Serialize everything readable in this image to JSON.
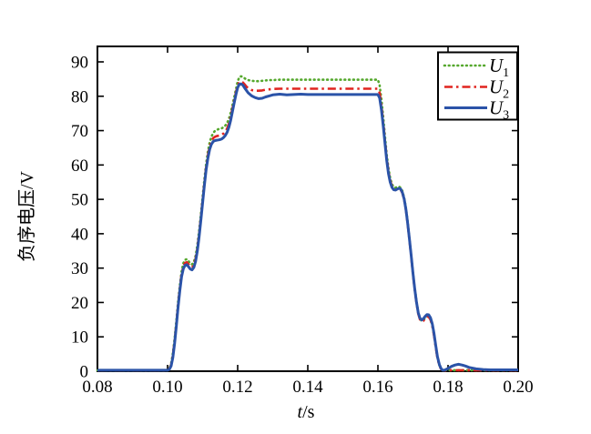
{
  "figure": {
    "background": "#ffffff",
    "axis_color": "#000000"
  },
  "chart_data": {
    "type": "line",
    "title": "",
    "xlabel": "t/s",
    "ylabel": "负序电压/V",
    "xlim": [
      0.08,
      0.2
    ],
    "ylim": [
      0,
      94.5
    ],
    "x_ticks": [
      0.08,
      0.1,
      0.12,
      0.14,
      0.16,
      0.18,
      0.2
    ],
    "x_tick_labels": [
      "0.08",
      "0.10",
      "0.12",
      "0.14",
      "0.16",
      "0.18",
      "0.20"
    ],
    "y_ticks": [
      0,
      10,
      20,
      30,
      40,
      50,
      60,
      70,
      80,
      90
    ],
    "y_tick_labels": [
      "0",
      "10",
      "20",
      "30",
      "40",
      "50",
      "60",
      "70",
      "80",
      "90"
    ],
    "grid": false,
    "legend_position": "top-right",
    "x": [
      0.08,
      0.085,
      0.09,
      0.095,
      0.1,
      0.1005,
      0.101,
      0.1015,
      0.102,
      0.1025,
      0.103,
      0.1035,
      0.104,
      0.1045,
      0.105,
      0.1055,
      0.106,
      0.1065,
      0.107,
      0.1075,
      0.108,
      0.1085,
      0.109,
      0.1095,
      0.11,
      0.1105,
      0.111,
      0.1115,
      0.112,
      0.1125,
      0.113,
      0.1135,
      0.114,
      0.1145,
      0.115,
      0.1155,
      0.116,
      0.1165,
      0.117,
      0.1175,
      0.118,
      0.1185,
      0.119,
      0.1195,
      0.12,
      0.1205,
      0.121,
      0.1215,
      0.122,
      0.1225,
      0.123,
      0.124,
      0.125,
      0.126,
      0.127,
      0.128,
      0.129,
      0.13,
      0.132,
      0.134,
      0.136,
      0.138,
      0.14,
      0.144,
      0.148,
      0.152,
      0.156,
      0.158,
      0.16,
      0.1605,
      0.161,
      0.1615,
      0.162,
      0.1625,
      0.163,
      0.1635,
      0.164,
      0.1645,
      0.165,
      0.1655,
      0.166,
      0.1665,
      0.167,
      0.1675,
      0.168,
      0.1685,
      0.169,
      0.1695,
      0.17,
      0.1705,
      0.171,
      0.1715,
      0.172,
      0.1725,
      0.173,
      0.1735,
      0.174,
      0.1745,
      0.175,
      0.1755,
      0.176,
      0.1765,
      0.177,
      0.1775,
      0.178,
      0.1785,
      0.179,
      0.18,
      0.181,
      0.182,
      0.183,
      0.184,
      0.185,
      0.186,
      0.188,
      0.19,
      0.192,
      0.194,
      0.196,
      0.198,
      0.2
    ],
    "series": [
      {
        "name": "U1",
        "label": "U",
        "sub": "1",
        "color": "#55a82d",
        "style": "dotted",
        "width": 2.6,
        "values": [
          0.3,
          0.3,
          0.3,
          0.3,
          0.3,
          0.7,
          2.2,
          5.2,
          9.4,
          14.5,
          20,
          25,
          29,
          31.4,
          32.4,
          32.6,
          32,
          31.3,
          31.1,
          31.8,
          33.6,
          36.6,
          40.7,
          45.7,
          50.7,
          55.7,
          60.2,
          63.9,
          66.5,
          68.2,
          69.3,
          69.9,
          70.2,
          70.4,
          70.5,
          70.7,
          71,
          71.5,
          72.2,
          73.4,
          75.2,
          77.3,
          79.6,
          82,
          84.3,
          85.6,
          85.8,
          85.6,
          85.2,
          84.9,
          84.7,
          84.5,
          84.4,
          84.4,
          84.5,
          84.6,
          84.7,
          84.7,
          84.8,
          84.8,
          84.8,
          84.8,
          84.8,
          84.8,
          84.8,
          84.8,
          84.8,
          84.8,
          84.8,
          83.2,
          79,
          74,
          68.5,
          63.2,
          59,
          56.2,
          54.4,
          53.6,
          53.4,
          53.6,
          53.7,
          53.4,
          52.4,
          50.4,
          47.4,
          43.4,
          38.8,
          33.8,
          28.8,
          24.3,
          20.3,
          17.1,
          15.3,
          14.6,
          14.9,
          15.6,
          16.1,
          16,
          15.2,
          13.4,
          10.7,
          7.2,
          4,
          1.8,
          0.7,
          0.3,
          0.3,
          0.3,
          0.3,
          0.3,
          0.3,
          0.3,
          0.3,
          0.3,
          0.3,
          0.3,
          0.3,
          0.3,
          0.3,
          0.3,
          0.3
        ]
      },
      {
        "name": "U2",
        "label": "U",
        "sub": "2",
        "color": "#e0241f",
        "style": "dash-dot",
        "width": 2.6,
        "values": [
          0.3,
          0.3,
          0.3,
          0.3,
          0.3,
          0.6,
          1.8,
          4.5,
          8.6,
          13.6,
          19.2,
          24.2,
          28.2,
          30.5,
          31.5,
          31.7,
          31.1,
          30.4,
          30.2,
          30.9,
          32.7,
          35.7,
          39.7,
          44.7,
          49.7,
          54.7,
          59.2,
          62.8,
          65.3,
          66.9,
          67.8,
          68.2,
          68.4,
          68.5,
          68.6,
          68.8,
          69.2,
          69.8,
          70.6,
          72,
          74,
          76.3,
          78.7,
          81.1,
          83.1,
          84.2,
          84.3,
          84,
          83.4,
          82.8,
          82.3,
          81.8,
          81.6,
          81.6,
          81.7,
          81.9,
          82,
          82.1,
          82.2,
          82.2,
          82.2,
          82.2,
          82.2,
          82.2,
          82.2,
          82.2,
          82.2,
          82.2,
          82.2,
          81,
          77.2,
          72.5,
          67.3,
          62.2,
          58.2,
          55.5,
          53.8,
          53,
          52.8,
          53,
          53.1,
          52.8,
          51.8,
          49.8,
          46.8,
          42.8,
          38.2,
          33.2,
          28.2,
          23.8,
          19.8,
          16.7,
          15,
          14.4,
          14.7,
          15.4,
          15.9,
          15.8,
          15,
          13.2,
          10.4,
          7,
          3.8,
          1.7,
          0.6,
          0.3,
          0.2,
          0.2,
          0.3,
          0.3,
          0.3,
          0.3,
          0.3,
          0.3,
          0.3,
          0.3,
          0.3,
          0.3,
          0.3,
          0.3,
          0.3
        ]
      },
      {
        "name": "U3",
        "label": "U",
        "sub": "3",
        "color": "#2b53a8",
        "style": "solid",
        "width": 3,
        "values": [
          0.3,
          0.3,
          0.3,
          0.3,
          0.3,
          0.5,
          1.5,
          4,
          8,
          13,
          18.5,
          23.5,
          27.5,
          29.8,
          30.8,
          31,
          30.4,
          29.7,
          29.5,
          30.2,
          32,
          35,
          39,
          44,
          49,
          54,
          58.5,
          62,
          64.5,
          66,
          66.8,
          67.1,
          67.2,
          67.3,
          67.4,
          67.6,
          68,
          68.6,
          69.5,
          71,
          73,
          75.5,
          78,
          80.5,
          82.5,
          83.5,
          83.6,
          83.2,
          82.4,
          81.7,
          81,
          80.1,
          79.6,
          79.3,
          79.4,
          79.8,
          80.1,
          80.4,
          80.6,
          80.4,
          80.5,
          80.6,
          80.5,
          80.5,
          80.5,
          80.5,
          80.5,
          80.5,
          80.5,
          79.5,
          76,
          71.5,
          66.5,
          61.5,
          57.5,
          55,
          53.5,
          52.8,
          52.7,
          53,
          53.2,
          53,
          52,
          50,
          47,
          43,
          38.5,
          33.5,
          28.5,
          24,
          20,
          17,
          15.4,
          14.9,
          15.3,
          16,
          16.5,
          16.4,
          15.6,
          13.8,
          11,
          7.5,
          4.2,
          2,
          0.8,
          0.3,
          0.3,
          0.8,
          1.4,
          1.8,
          2,
          1.8,
          1.5,
          1.1,
          0.7,
          0.5,
          0.4,
          0.4,
          0.4,
          0.4,
          0.4
        ]
      }
    ]
  }
}
